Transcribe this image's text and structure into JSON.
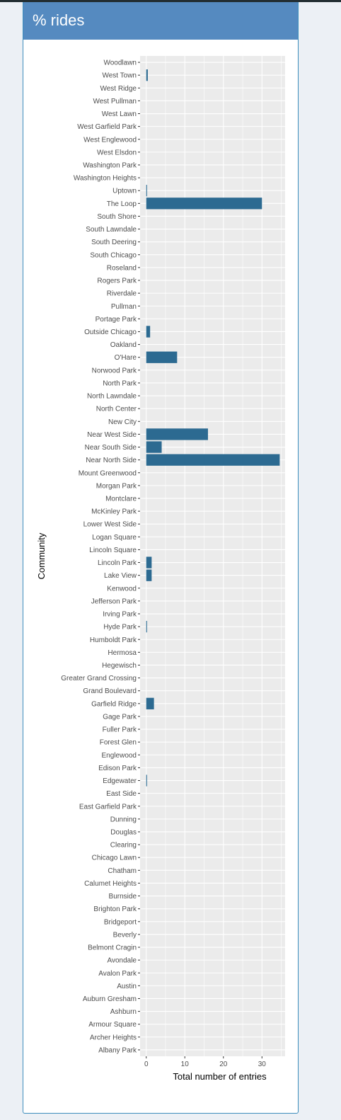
{
  "box": {
    "title": "% rides"
  },
  "chart_data": {
    "type": "bar",
    "orientation": "horizontal",
    "xlabel": "Total number of entries",
    "ylabel": "Community",
    "xlim": [
      -1.6,
      36
    ],
    "xticks": [
      0,
      10,
      20,
      30
    ],
    "grid": true,
    "bar_color": "#2c6a91",
    "panel_color": "#ebebeb",
    "categories": [
      "Woodlawn",
      "West Town",
      "West Ridge",
      "West Pullman",
      "West Lawn",
      "West Garfield Park",
      "West Englewood",
      "West Elsdon",
      "Washington Park",
      "Washington Heights",
      "Uptown",
      "The Loop",
      "South Shore",
      "South Lawndale",
      "South Deering",
      "South Chicago",
      "Roseland",
      "Rogers Park",
      "Riverdale",
      "Pullman",
      "Portage Park",
      "Outside Chicago",
      "Oakland",
      "O'Hare",
      "Norwood Park",
      "North Park",
      "North Lawndale",
      "North Center",
      "New City",
      "Near West Side",
      "Near South Side",
      "Near North Side",
      "Mount Greenwood",
      "Morgan Park",
      "Montclare",
      "McKinley Park",
      "Lower West Side",
      "Logan Square",
      "Lincoln Square",
      "Lincoln Park",
      "Lake View",
      "Kenwood",
      "Jefferson Park",
      "Irving Park",
      "Hyde Park",
      "Humboldt Park",
      "Hermosa",
      "Hegewisch",
      "Greater Grand Crossing",
      "Grand Boulevard",
      "Garfield Ridge",
      "Gage Park",
      "Fuller Park",
      "Forest Glen",
      "Englewood",
      "Edison Park",
      "Edgewater",
      "East Side",
      "East Garfield Park",
      "Dunning",
      "Douglas",
      "Clearing",
      "Chicago Lawn",
      "Chatham",
      "Calumet Heights",
      "Burnside",
      "Brighton Park",
      "Bridgeport",
      "Beverly",
      "Belmont Cragin",
      "Avondale",
      "Avalon Park",
      "Austin",
      "Auburn Gresham",
      "Ashburn",
      "Armour Square",
      "Archer Heights",
      "Albany Park"
    ],
    "values": [
      0,
      0.4,
      0,
      0,
      0,
      0,
      0,
      0,
      0,
      0,
      0.2,
      30,
      0,
      0,
      0,
      0,
      0,
      0,
      0,
      0,
      0,
      1,
      0,
      8,
      0,
      0,
      0,
      0,
      0,
      16,
      4,
      34.6,
      0,
      0,
      0,
      0,
      0,
      0,
      0,
      1.4,
      1.4,
      0,
      0,
      0,
      0.2,
      0,
      0,
      0,
      0,
      0,
      2,
      0,
      0,
      0,
      0,
      0,
      0.2,
      0,
      0,
      0,
      0,
      0,
      0,
      0,
      0,
      0,
      0,
      0,
      0,
      0,
      0,
      0,
      0,
      0,
      0,
      0,
      0,
      0
    ]
  }
}
